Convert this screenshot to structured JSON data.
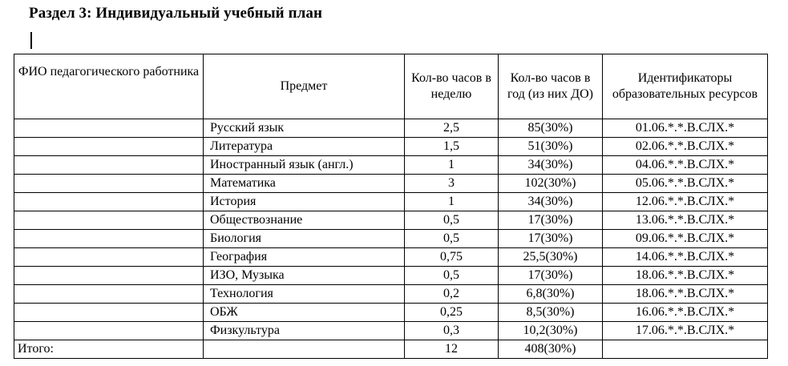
{
  "title": "Раздел 3: Индивидуальный учебный план",
  "table": {
    "headers": {
      "fio": "ФИО педагогического работника",
      "subject": "Предмет",
      "hours_week": "Кол-во часов в неделю",
      "hours_year": "Кол-во часов в год (из них ДО)",
      "resources": "Идентификаторы образовательных ресурсов"
    },
    "rows": [
      {
        "subject": "Русский язык",
        "week": "2,5",
        "year": "85(30%)",
        "id": "01.06.*.*.В.СЛХ.*"
      },
      {
        "subject": "Литература",
        "week": "1,5",
        "year": "51(30%)",
        "id": "02.06.*.*.В.СЛХ.*"
      },
      {
        "subject": "Иностранный язык (англ.)",
        "week": "1",
        "year": "34(30%)",
        "id": "04.06.*.*.В.СЛХ.*"
      },
      {
        "subject": "Математика",
        "week": "3",
        "year": "102(30%)",
        "id": "05.06.*.*.В.СЛХ.*"
      },
      {
        "subject": "История",
        "week": "1",
        "year": "34(30%)",
        "id": "12.06.*.*.В.СЛХ.*"
      },
      {
        "subject": "Обществознание",
        "week": "0,5",
        "year": "17(30%)",
        "id": "13.06.*.*.В.СЛХ.*"
      },
      {
        "subject": "Биология",
        "week": "0,5",
        "year": "17(30%)",
        "id": "09.06.*.*.В.СЛХ.*"
      },
      {
        "subject": "География",
        "week": "0,75",
        "year": "25,5(30%)",
        "id": "14.06.*.*.В.СЛХ.*"
      },
      {
        "subject": "ИЗО, Музыка",
        "week": "0,5",
        "year": "17(30%)",
        "id": "18.06.*.*.В.СЛХ.*"
      },
      {
        "subject": "Технология",
        "week": "0,2",
        "year": "6,8(30%)",
        "id": "18.06.*.*.В.СЛХ.*"
      },
      {
        "subject": "ОБЖ",
        "week": "0,25",
        "year": "8,5(30%)",
        "id": "16.06.*.*.В.СЛХ.*"
      },
      {
        "subject": "Физкультура",
        "week": "0,3",
        "year": "10,2(30%)",
        "id": "17.06.*.*.В.СЛХ.*"
      }
    ],
    "total": {
      "label": "Итого:",
      "week": "12",
      "year": "408(30%)"
    }
  }
}
